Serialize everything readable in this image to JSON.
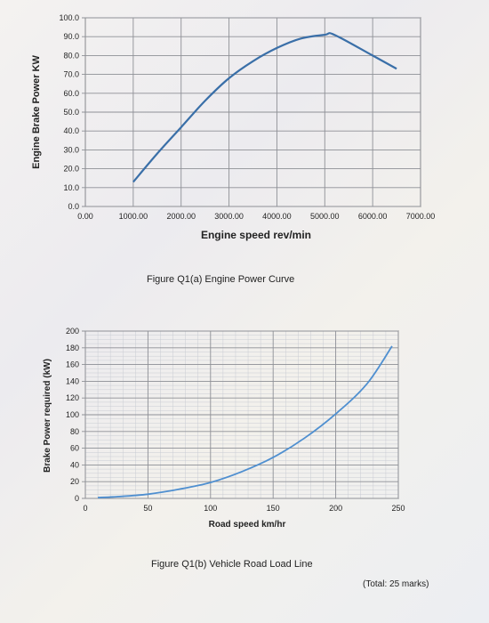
{
  "chart_data": [
    {
      "type": "line",
      "title": "",
      "xlabel": "Engine speed rev/min",
      "ylabel": "Engine Brake Power KW",
      "xlim": [
        0,
        7000
      ],
      "ylim": [
        0,
        100
      ],
      "x_ticks": [
        "0.00",
        "1000.00",
        "2000.00",
        "3000.00",
        "4000.00",
        "5000.00",
        "6000.00",
        "7000.00"
      ],
      "y_ticks": [
        "0.0",
        "10.0",
        "20.0",
        "30.0",
        "40.0",
        "50.0",
        "60.0",
        "70.0",
        "80.0",
        "90.0",
        "100.0"
      ],
      "grid": true,
      "legend": "none",
      "series": [
        {
          "x": [
            1000,
            1500,
            2000,
            2500,
            3000,
            3500,
            4000,
            4500,
            5000,
            5200,
            6000,
            6500
          ],
          "y": [
            13,
            28,
            42,
            56,
            68,
            77,
            84,
            89,
            91,
            91,
            80,
            73
          ]
        }
      ],
      "color": "#3a6fa8"
    },
    {
      "type": "line",
      "title": "",
      "xlabel": "Road speed km/hr",
      "ylabel": "Brake Power required (kW)",
      "xlim": [
        0,
        250
      ],
      "ylim": [
        0,
        200
      ],
      "x_ticks": [
        "0",
        "50",
        "100",
        "150",
        "200",
        "250"
      ],
      "y_ticks": [
        "0",
        "20",
        "40",
        "60",
        "80",
        "100",
        "120",
        "140",
        "160",
        "180",
        "200"
      ],
      "grid": true,
      "legend": "none",
      "series": [
        {
          "x": [
            10,
            25,
            50,
            75,
            100,
            125,
            150,
            175,
            200,
            225,
            245
          ],
          "y": [
            1,
            2,
            5,
            11,
            19,
            32,
            49,
            72,
            101,
            137,
            182
          ]
        }
      ],
      "color": "#4f8fd0"
    }
  ],
  "captions": {
    "figure_a": "Figure Q1(a) Engine Power Curve",
    "figure_b": "Figure Q1(b) Vehicle Road Load Line",
    "total_marks": "(Total: 25 marks)"
  }
}
